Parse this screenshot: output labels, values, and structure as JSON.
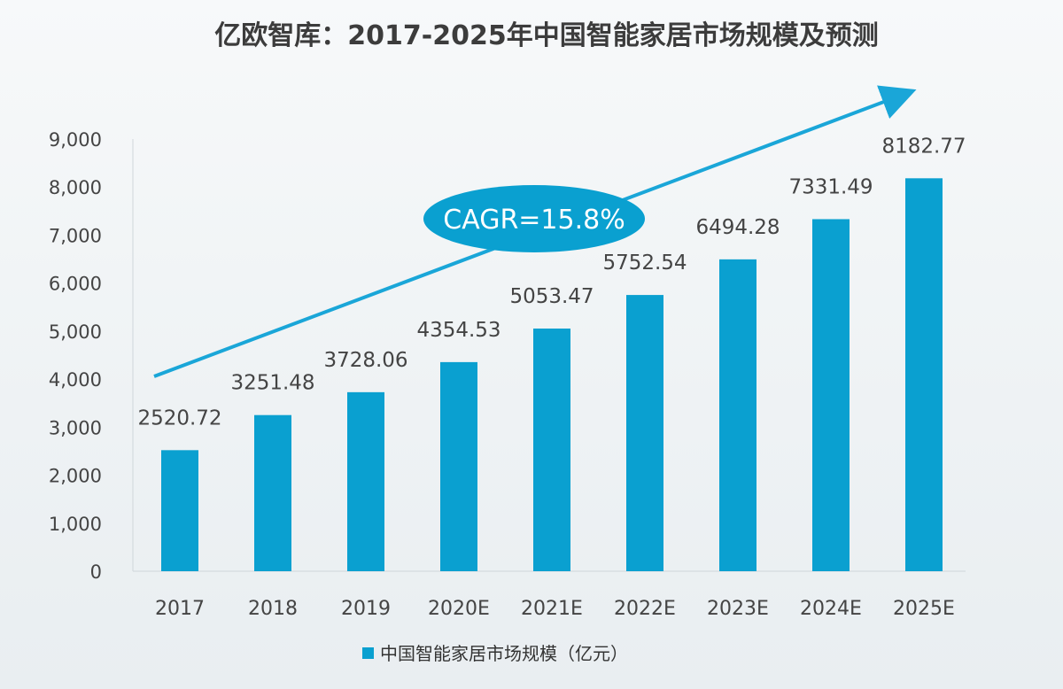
{
  "chart_data": {
    "type": "bar",
    "title": "亿欧智库：2017-2025年中国智能家居市场规模及预测",
    "categories": [
      "2017",
      "2018",
      "2019",
      "2020E",
      "2021E",
      "2022E",
      "2023E",
      "2024E",
      "2025E"
    ],
    "series": [
      {
        "name": "中国智能家居市场规模（亿元）",
        "values": [
          2520.72,
          3251.48,
          3728.06,
          4354.53,
          5053.47,
          5752.54,
          6494.28,
          7331.49,
          8182.77
        ],
        "color": "#0aa0d0"
      }
    ],
    "data_labels": [
      "2520.72",
      "3251.48",
      "3728.06",
      "4354.53",
      "5053.47",
      "5752.54",
      "6494.28",
      "7331.49",
      "8182.77"
    ],
    "ylim": [
      0,
      9000
    ],
    "yticks": [
      0,
      1000,
      2000,
      3000,
      4000,
      5000,
      6000,
      7000,
      8000,
      9000
    ],
    "ytick_labels": [
      "0",
      "1,000",
      "2,000",
      "3,000",
      "4,000",
      "5,000",
      "6,000",
      "7,000",
      "8,000",
      "9,000"
    ],
    "xlabel": "",
    "ylabel": "",
    "grid": false,
    "legend_position": "bottom",
    "annotation": {
      "text": "CAGR=15.8%",
      "color": "#0aa0d0"
    },
    "trend_arrow_color": "#1aa6d8"
  }
}
